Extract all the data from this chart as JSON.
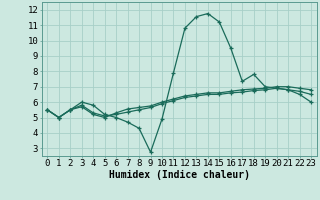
{
  "title": "",
  "xlabel": "Humidex (Indice chaleur)",
  "ylabel": "",
  "background_color": "#cce8e0",
  "grid_color": "#a8cfc8",
  "line_color": "#1a6b5a",
  "xlim": [
    -0.5,
    23.5
  ],
  "ylim": [
    2.5,
    12.5
  ],
  "xticks": [
    0,
    1,
    2,
    3,
    4,
    5,
    6,
    7,
    8,
    9,
    10,
    11,
    12,
    13,
    14,
    15,
    16,
    17,
    18,
    19,
    20,
    21,
    22,
    23
  ],
  "yticks": [
    3,
    4,
    5,
    6,
    7,
    8,
    9,
    10,
    11,
    12
  ],
  "curve1_x": [
    0,
    1,
    2,
    3,
    4,
    5,
    6,
    7,
    8,
    9,
    10,
    11,
    12,
    13,
    14,
    15,
    16,
    17,
    18,
    19,
    20,
    21,
    22,
    23
  ],
  "curve1_y": [
    5.5,
    5.0,
    5.5,
    6.0,
    5.8,
    5.2,
    5.0,
    4.7,
    4.3,
    2.75,
    4.9,
    7.9,
    10.8,
    11.55,
    11.75,
    11.2,
    9.5,
    7.35,
    7.8,
    7.0,
    6.9,
    6.8,
    6.5,
    6.0
  ],
  "curve2_x": [
    0,
    1,
    2,
    3,
    4,
    5,
    6,
    7,
    8,
    9,
    10,
    11,
    12,
    13,
    14,
    15,
    16,
    17,
    18,
    19,
    20,
    21,
    22,
    23
  ],
  "curve2_y": [
    5.5,
    5.0,
    5.5,
    5.7,
    5.2,
    5.0,
    5.3,
    5.55,
    5.65,
    5.75,
    6.0,
    6.2,
    6.4,
    6.5,
    6.6,
    6.6,
    6.7,
    6.8,
    6.85,
    6.9,
    7.0,
    7.0,
    6.9,
    6.8
  ],
  "curve3_x": [
    0,
    1,
    2,
    3,
    4,
    5,
    6,
    7,
    8,
    9,
    10,
    11,
    12,
    13,
    14,
    15,
    16,
    17,
    18,
    19,
    20,
    21,
    22,
    23
  ],
  "curve3_y": [
    5.5,
    5.0,
    5.5,
    5.8,
    5.3,
    5.1,
    5.2,
    5.35,
    5.5,
    5.65,
    5.9,
    6.1,
    6.3,
    6.4,
    6.5,
    6.5,
    6.6,
    6.65,
    6.75,
    6.8,
    6.9,
    6.8,
    6.7,
    6.5
  ],
  "tick_fontsize": 6.5,
  "xlabel_fontsize": 7.0
}
